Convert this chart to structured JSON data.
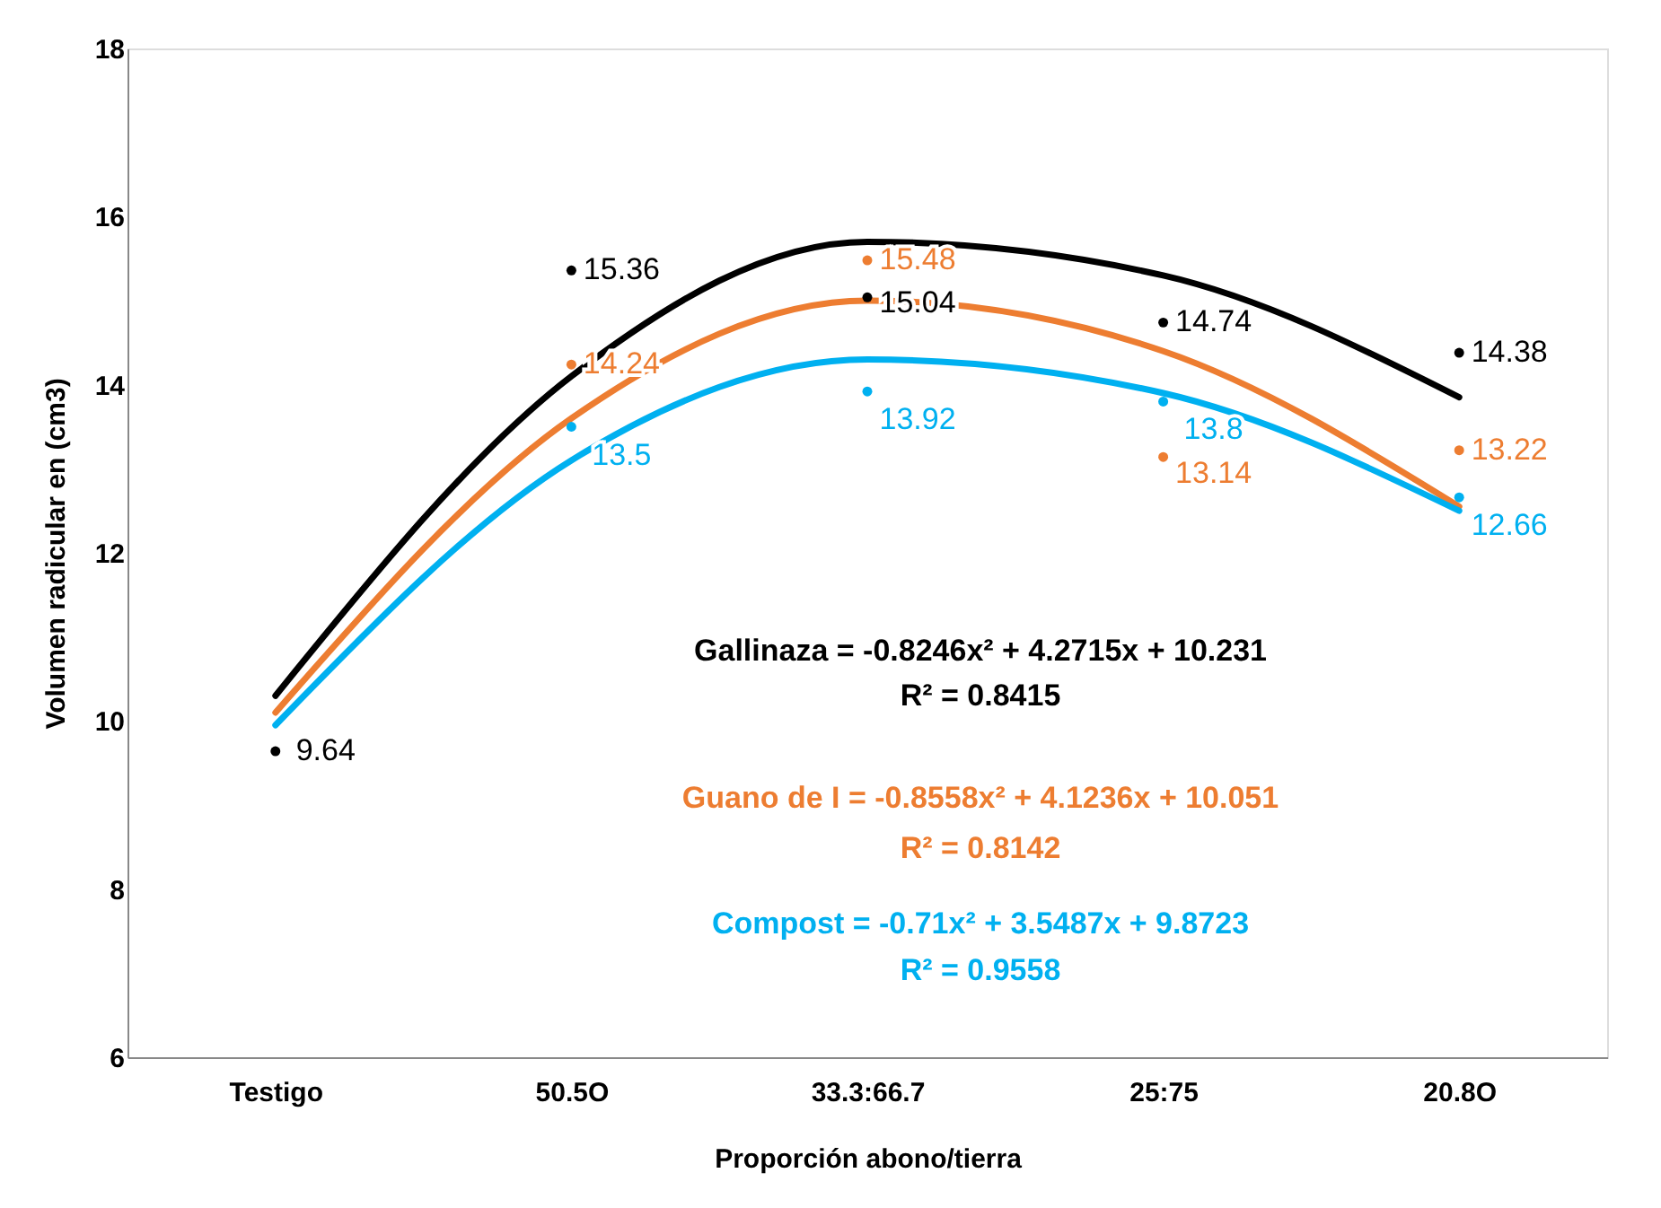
{
  "chart_data": {
    "type": "line",
    "xlabel": "Proporción abono/tierra",
    "ylabel": "Volumen radicular en (cm3)",
    "categories": [
      "Testigo",
      "50.5O",
      "33.3:66.7",
      "25:75",
      "20.8O"
    ],
    "ylim": [
      6,
      18
    ],
    "yticks": [
      6,
      8,
      10,
      12,
      14,
      16,
      18
    ],
    "grid": false,
    "series": [
      {
        "color": "#000000",
        "values": [
          10.3,
          14.1,
          15.7,
          15.3,
          13.85
        ]
      },
      {
        "color": "#ed7d31",
        "values": [
          10.1,
          13.6,
          15.0,
          14.4,
          12.55
        ]
      },
      {
        "color": "#00b0f0",
        "values": [
          9.95,
          13.1,
          14.3,
          13.9,
          12.5
        ]
      },
      {
        "type": "scatter",
        "marker": "circle",
        "color": "#000000",
        "values": [
          9.64,
          15.36,
          15.04,
          14.74,
          14.38
        ],
        "value_labels": [
          "9.64",
          "15.36",
          "15.04",
          "14.74",
          "14.38"
        ]
      },
      {
        "type": "scatter",
        "marker": "circle",
        "color": "#ed7d31",
        "values": [
          null,
          14.24,
          15.48,
          13.14,
          13.22
        ],
        "value_labels": [
          null,
          "14.24",
          "15.48",
          "13.14",
          "13.22"
        ]
      },
      {
        "type": "scatter",
        "marker": "circle",
        "color": "#00b0f0",
        "values": [
          null,
          13.5,
          13.92,
          13.8,
          12.66
        ],
        "value_labels": [
          null,
          "13.5",
          "13.92",
          "13.8",
          "12.66"
        ]
      }
    ],
    "annotations": [
      "Gallinaza = -0.8246x² + 4.2715x + 10.231",
      "R² = 0.8415",
      "Guano de I = -0.8558x² + 4.1236x + 10.051",
      "R² = 0.8142",
      "Compost = -0.71x² + 3.5487x + 9.8723",
      "R² = 0.9558"
    ]
  }
}
